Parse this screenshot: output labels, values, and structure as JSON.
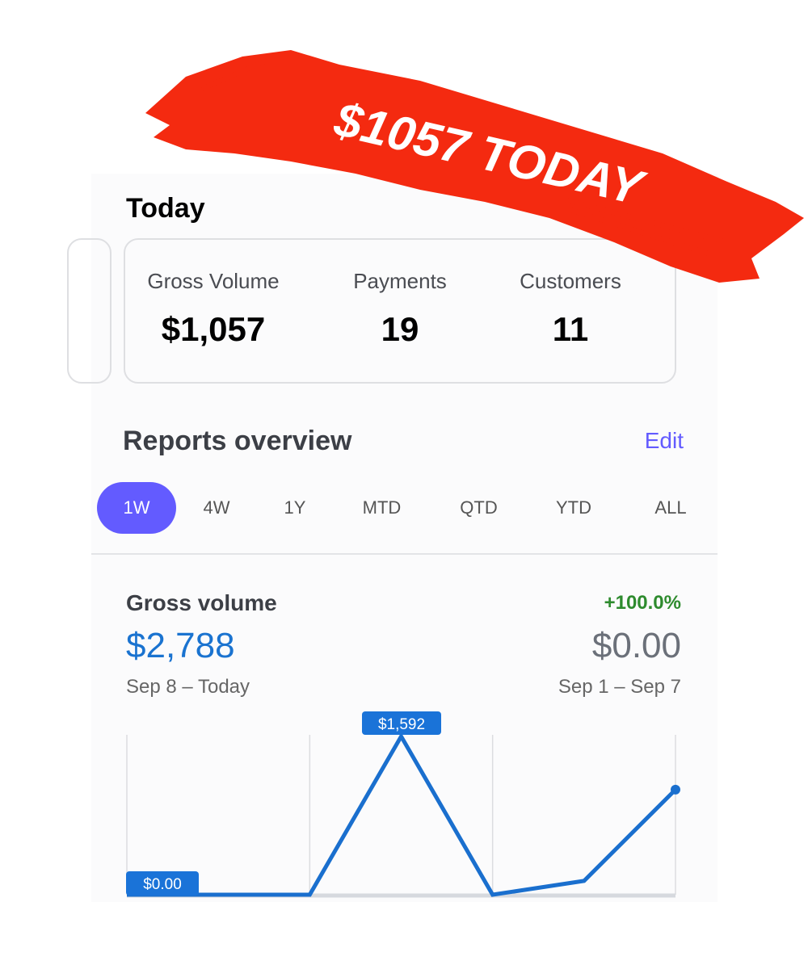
{
  "banner": {
    "text": "$1057 TODAY",
    "color": "#f42a10"
  },
  "today": {
    "title": "Today",
    "stats": [
      {
        "label": "Gross Volume",
        "value": "$1,057"
      },
      {
        "label": "Payments",
        "value": "19"
      },
      {
        "label": "Customers",
        "value": "11"
      }
    ]
  },
  "reports": {
    "title": "Reports overview",
    "edit_label": "Edit",
    "tabs": [
      "1W",
      "4W",
      "1Y",
      "MTD",
      "QTD",
      "YTD",
      "ALL"
    ],
    "active_tab": "1W",
    "accent": "#635bff"
  },
  "gross_volume": {
    "label": "Gross volume",
    "value": "$2,788",
    "range": "Sep 8 – Today",
    "change": "+100.0%",
    "previous_value": "$0.00",
    "previous_range": "Sep 1 – Sep 7"
  },
  "chart_data": {
    "type": "line",
    "values": [
      0,
      0,
      0,
      1592,
      0,
      139,
      1057
    ],
    "labels": {
      "max": "$1,592",
      "start": "$0.00"
    },
    "color": "#1a6fce",
    "grid": true
  }
}
